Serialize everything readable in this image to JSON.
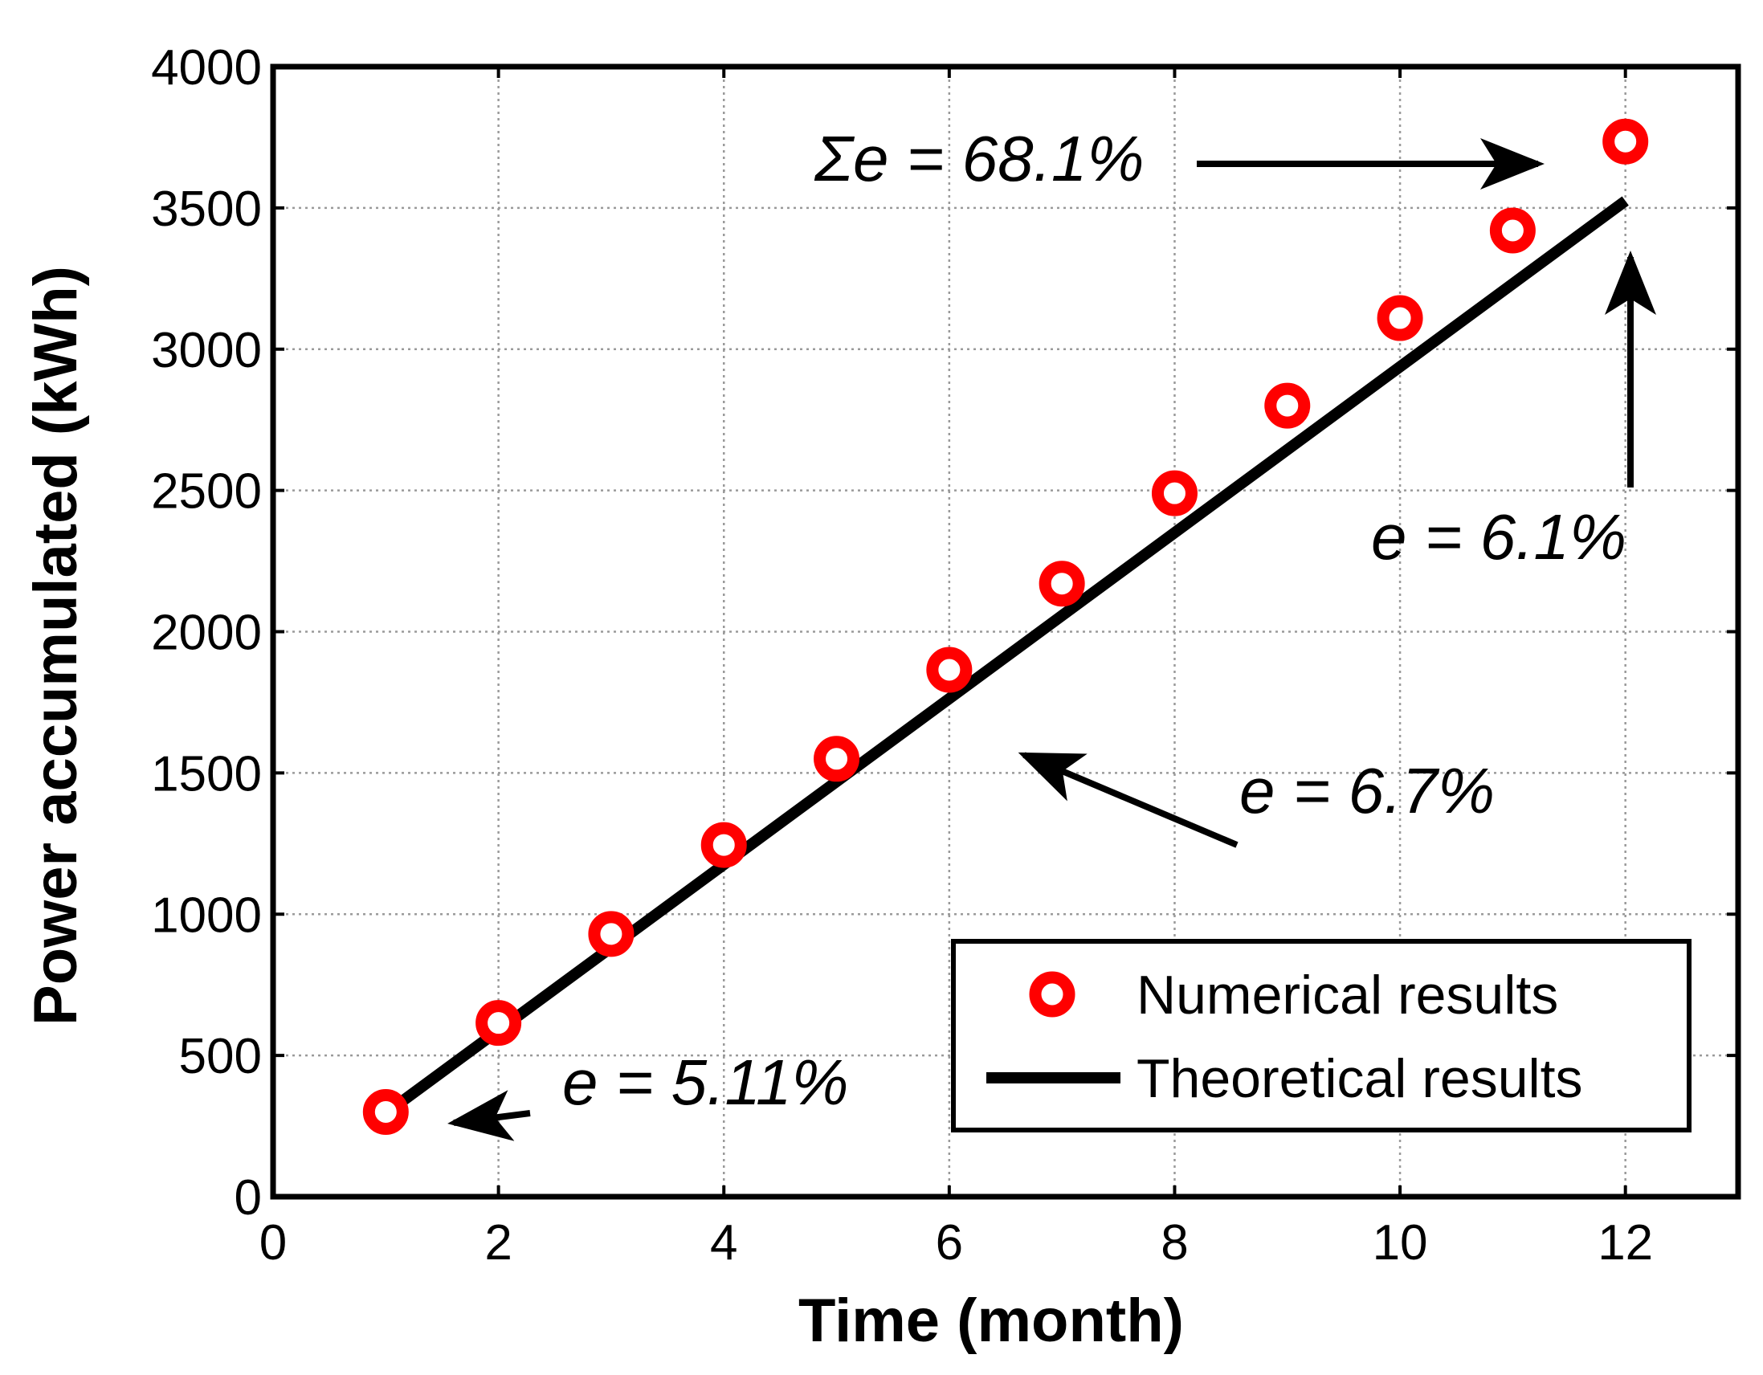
{
  "chart_data": {
    "type": "scatter",
    "title": "",
    "xlabel": "Time (month)",
    "ylabel": "Power accumulated (kWh)",
    "xlim": [
      0,
      13
    ],
    "ylim": [
      0,
      4000
    ],
    "xticks": [
      0,
      2,
      4,
      6,
      8,
      10,
      12
    ],
    "yticks": [
      0,
      500,
      1000,
      1500,
      2000,
      2500,
      3000,
      3500,
      4000
    ],
    "grid": true,
    "legend_position": "bottom-right",
    "series": [
      {
        "name": "Numerical results",
        "kind": "scatter",
        "marker": "circle",
        "color": "#ff0000",
        "x": [
          1,
          2,
          3,
          4,
          5,
          6,
          7,
          8,
          9,
          10,
          11,
          12
        ],
        "y": [
          300,
          615,
          930,
          1245,
          1550,
          1865,
          2170,
          2490,
          2800,
          3110,
          3420,
          3735
        ]
      },
      {
        "name": "Theoretical results",
        "kind": "line",
        "color": "#000000",
        "x": [
          1,
          12
        ],
        "y": [
          295,
          3525
        ]
      }
    ],
    "annotations": [
      {
        "text": "e = 5.11%",
        "point": [
          1,
          295
        ]
      },
      {
        "text": "e = 6.7%",
        "point": [
          6,
          1390
        ]
      },
      {
        "text": "e = 6.1%",
        "point": [
          12,
          3525
        ]
      },
      {
        "text": "Σe = 68.1%",
        "point": [
          12,
          3735
        ]
      }
    ]
  }
}
